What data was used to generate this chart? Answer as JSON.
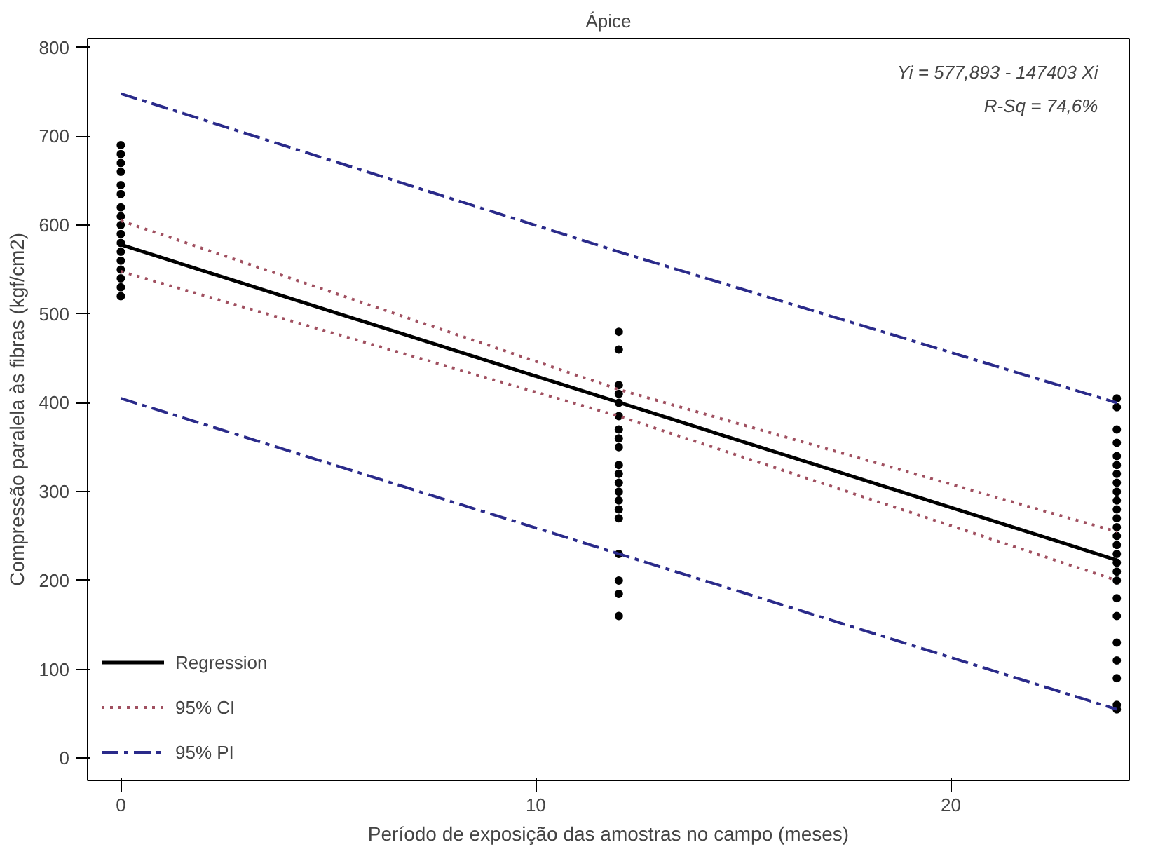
{
  "chart_data": {
    "type": "line",
    "title": "Ápice",
    "xlabel": "Período de exposição das amostras no campo (meses)",
    "ylabel": "Compressão paralela às fibras (kgf/cm2)",
    "xlim": [
      -0.8,
      24.3
    ],
    "ylim": [
      -25,
      810
    ],
    "xticks": [
      0,
      10,
      20
    ],
    "yticks": [
      0,
      100,
      200,
      300,
      400,
      500,
      600,
      700,
      800
    ],
    "grid": false,
    "legend": "bottom left",
    "marker": "none",
    "annotations": [
      "Yi = 577,893 - 147403 Xi",
      "R-Sq = 74,6%"
    ],
    "series": [
      {
        "type": "scatter",
        "marker": "circle",
        "color": "#000000",
        "x": [
          0,
          0,
          0,
          0,
          0,
          0,
          0,
          0,
          0,
          0,
          0,
          0,
          0,
          0,
          0,
          0,
          0,
          12,
          12,
          12,
          12,
          12,
          12,
          12,
          12,
          12,
          12,
          12,
          12,
          12,
          12,
          12,
          12,
          12,
          12,
          12,
          12,
          24,
          24,
          24,
          24,
          24,
          24,
          24,
          24,
          24,
          24,
          24,
          24,
          24,
          24,
          24,
          24,
          24,
          24,
          24,
          24,
          24,
          24,
          24,
          24,
          24,
          24
        ],
        "values": [
          690,
          680,
          670,
          660,
          645,
          635,
          620,
          610,
          600,
          590,
          580,
          570,
          560,
          550,
          540,
          530,
          520,
          480,
          460,
          420,
          410,
          400,
          385,
          370,
          360,
          350,
          330,
          320,
          310,
          300,
          290,
          280,
          270,
          230,
          200,
          185,
          160,
          405,
          395,
          370,
          355,
          340,
          330,
          320,
          310,
          300,
          290,
          280,
          270,
          260,
          250,
          240,
          230,
          220,
          210,
          200,
          180,
          160,
          130,
          110,
          90,
          60,
          55
        ]
      },
      {
        "name": "Regression",
        "color": "#000000",
        "line_style": "solid",
        "x": [
          0,
          24
        ],
        "values": [
          578,
          223
        ]
      },
      {
        "name": "95% CI",
        "color": "#a05060",
        "line_style": "dotted",
        "x": [
          0,
          12,
          24
        ],
        "values": [
          605,
          415,
          255
        ]
      },
      {
        "color": "#a05060",
        "line_style": "dotted",
        "x": [
          0,
          12,
          24
        ],
        "values": [
          548,
          385,
          200
        ]
      },
      {
        "name": "95% PI",
        "color": "#2a2a8a",
        "line_style": "dashed",
        "x": [
          0,
          12,
          24
        ],
        "values": [
          748,
          570,
          400
        ]
      },
      {
        "color": "#2a2a8a",
        "line_style": "dashed",
        "x": [
          0,
          12,
          24
        ],
        "values": [
          405,
          230,
          55
        ]
      }
    ]
  }
}
